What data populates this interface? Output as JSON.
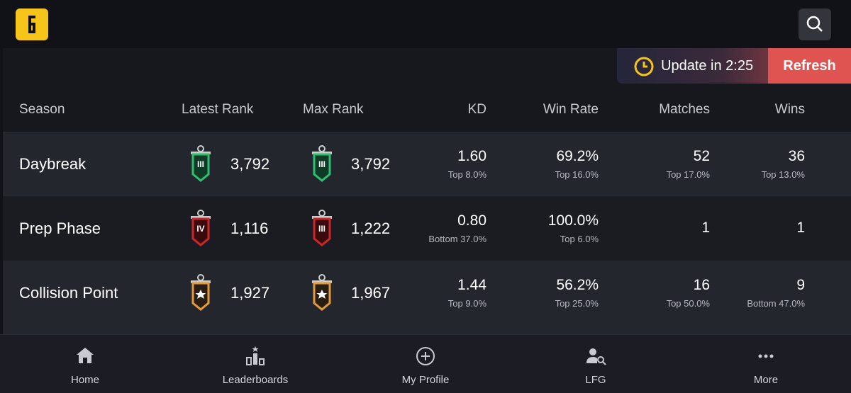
{
  "toast": {
    "message": "Update in 2:25",
    "action": "Refresh"
  },
  "table": {
    "headers": [
      "Season",
      "Latest Rank",
      "Max Rank",
      "KD",
      "Win Rate",
      "Matches",
      "Wins"
    ],
    "rows": [
      {
        "season": "Daybreak",
        "latest_tier": "III",
        "latest_rank": "3,792",
        "max_tier": "III",
        "max_rank": "3,792",
        "kd": "1.60",
        "kd_sub": "Top 8.0%",
        "win_rate": "69.2%",
        "win_rate_sub": "Top 16.0%",
        "matches": "52",
        "matches_sub": "Top 17.0%",
        "wins": "36",
        "wins_sub": "Top 13.0%"
      },
      {
        "season": "Prep Phase",
        "latest_tier": "IV",
        "latest_rank": "1,116",
        "max_tier": "III",
        "max_rank": "1,222",
        "kd": "0.80",
        "kd_sub": "Bottom 37.0%",
        "win_rate": "100.0%",
        "win_rate_sub": "Top 6.0%",
        "matches": "1",
        "wins": "1"
      },
      {
        "season": "Collision Point",
        "latest_rank": "1,927",
        "max_rank": "1,967",
        "kd": "1.44",
        "kd_sub": "Top 9.0%",
        "win_rate": "56.2%",
        "win_rate_sub": "Top 25.0%",
        "matches": "16",
        "matches_sub": "Top 50.0%",
        "wins": "9",
        "wins_sub": "Bottom 47.0%"
      }
    ]
  },
  "nav": [
    "Home",
    "Leaderboards",
    "My Profile",
    "LFG",
    "More"
  ]
}
